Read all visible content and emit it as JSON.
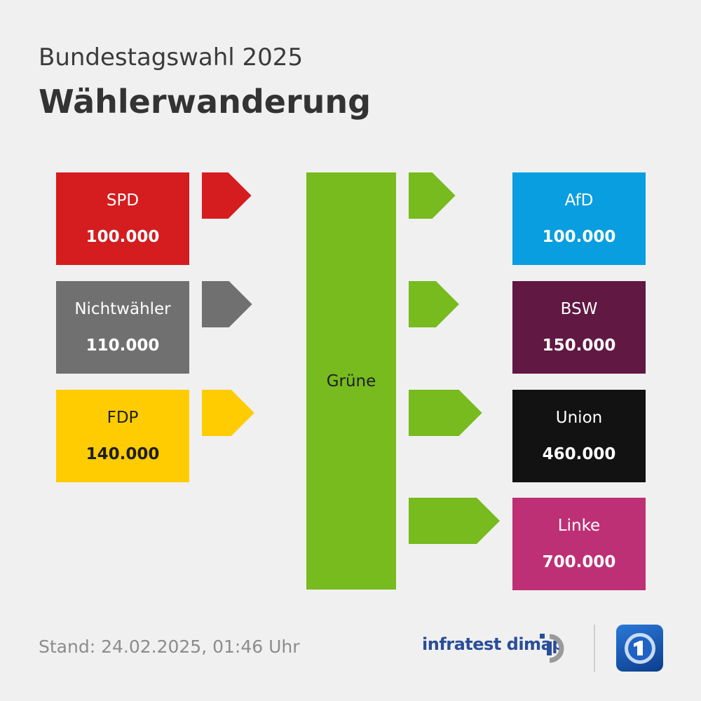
{
  "header": {
    "subtitle": "Bundestagswahl 2025",
    "title": "Wählerwanderung"
  },
  "chart_data": {
    "type": "flow",
    "center": "Grüne",
    "sources": [
      {
        "name": "SPD",
        "label": "100.000",
        "value": 100000,
        "color": "#d51c1f"
      },
      {
        "name": "Nichtwähler",
        "label": "110.000",
        "value": 110000,
        "color": "#707070"
      },
      {
        "name": "FDP",
        "label": "140.000",
        "value": 140000,
        "color": "#fecc00"
      }
    ],
    "targets": [
      {
        "name": "AfD",
        "label": "100.000",
        "value": 100000,
        "color": "#089ee0"
      },
      {
        "name": "BSW",
        "label": "150.000",
        "value": 150000,
        "color": "#611842"
      },
      {
        "name": "Union",
        "label": "460.000",
        "value": 460000,
        "color": "#121212"
      },
      {
        "name": "Linke",
        "label": "700.000",
        "value": 700000,
        "color": "#be3075"
      }
    ]
  },
  "colors": {
    "center": "#77bb1e",
    "background": "#f0f0f0"
  },
  "footer": {
    "stand": "Stand:  24.02.2025, 01:46 Uhr"
  },
  "brand": {
    "name": "infratest dimap",
    "logo_icon": "ard-logo-icon"
  }
}
